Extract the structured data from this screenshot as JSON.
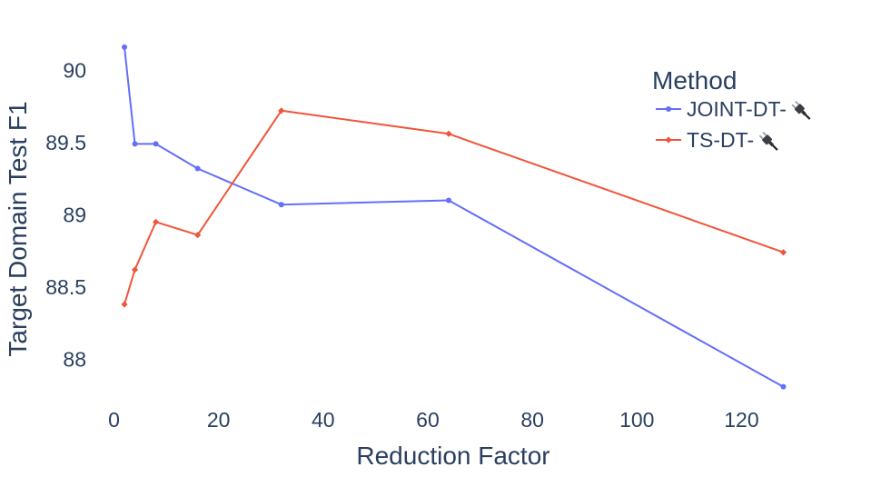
{
  "chart_data": {
    "type": "line",
    "title": "",
    "xlabel": "Reduction Factor",
    "ylabel": "Target Domain Test F1",
    "xlim": [
      -2,
      130
    ],
    "ylim": [
      87.72,
      90.36
    ],
    "x_ticks": [
      0,
      20,
      40,
      60,
      80,
      100,
      120
    ],
    "y_ticks": [
      88,
      88.5,
      89,
      89.5,
      90
    ],
    "x_tick_labels": [
      "0",
      "20",
      "40",
      "60",
      "80",
      "100",
      "120"
    ],
    "y_tick_labels": [
      "88",
      "88.5",
      "89",
      "89.5",
      "90"
    ],
    "grid": false,
    "legend": {
      "title": "Method",
      "position": "top-right",
      "icon": "plug-icon"
    },
    "series": [
      {
        "name": "JOINT-DT-",
        "color": "#636efa",
        "marker": "circle",
        "x": [
          2,
          4,
          8,
          16,
          32,
          64,
          128
        ],
        "y": [
          90.16,
          89.49,
          89.49,
          89.32,
          89.07,
          89.1,
          87.81
        ]
      },
      {
        "name": "TS-DT-",
        "color": "#EF553B",
        "marker": "diamond",
        "x": [
          2,
          4,
          8,
          16,
          32,
          64,
          128
        ],
        "y": [
          88.38,
          88.62,
          88.95,
          88.86,
          89.72,
          89.56,
          88.74
        ]
      }
    ]
  }
}
